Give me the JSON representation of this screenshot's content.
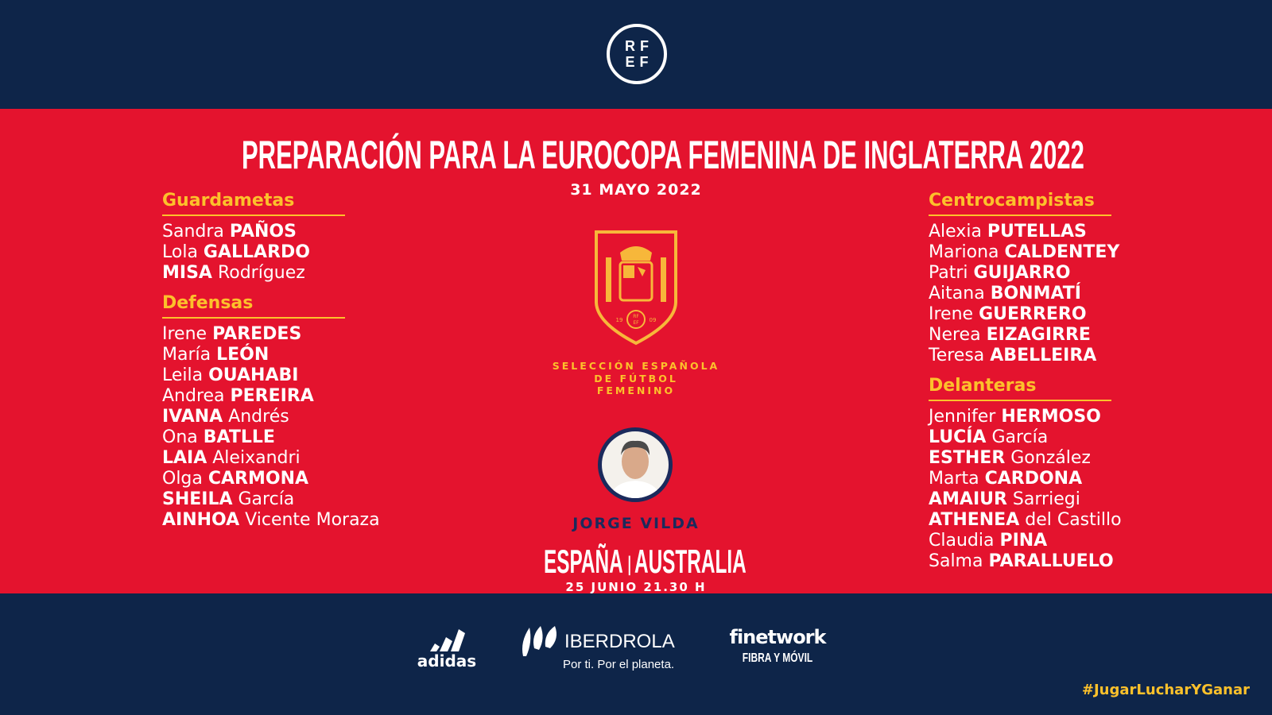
{
  "header": {
    "logo_text": [
      "RF",
      "EF"
    ]
  },
  "title": "PREPARACIÓN PARA LA EUROCOPA FEMENINA DE INGLATERRA 2022",
  "date": "31 MAYO 2022",
  "colors": {
    "navy": "#0e2549",
    "red": "#e4132e",
    "yellow": "#fcc12b"
  },
  "crest": {
    "years": [
      "19",
      "09"
    ],
    "logo_text": [
      "RF",
      "EF"
    ]
  },
  "team_name": [
    "SELECCIÓN ESPAÑOLA",
    "DE FÚTBOL",
    "FEMENINO"
  ],
  "coach": "JORGE VILDA",
  "match": {
    "home": "ESPAÑA",
    "away": "AUSTRALIA",
    "datetime": "25 JUNIO 21.30 H"
  },
  "left_groups": [
    {
      "title": "Guardametas",
      "players": [
        [
          [
            "Sandra ",
            0
          ],
          [
            "PAÑOS",
            1
          ]
        ],
        [
          [
            "Lola ",
            0
          ],
          [
            "GALLARDO",
            1
          ]
        ],
        [
          [
            "MISA",
            1
          ],
          [
            " Rodríguez",
            0
          ]
        ]
      ]
    },
    {
      "title": "Defensas",
      "players": [
        [
          [
            "Irene ",
            0
          ],
          [
            "PAREDES",
            1
          ]
        ],
        [
          [
            "María ",
            0
          ],
          [
            "LEÓN",
            1
          ]
        ],
        [
          [
            "Leila ",
            0
          ],
          [
            "OUAHABI",
            1
          ]
        ],
        [
          [
            "Andrea ",
            0
          ],
          [
            "PEREIRA",
            1
          ]
        ],
        [
          [
            "IVANA",
            1
          ],
          [
            " Andrés",
            0
          ]
        ],
        [
          [
            "Ona ",
            0
          ],
          [
            "BATLLE",
            1
          ]
        ],
        [
          [
            "LAIA",
            1
          ],
          [
            " Aleixandri",
            0
          ]
        ],
        [
          [
            "Olga ",
            0
          ],
          [
            "CARMONA",
            1
          ]
        ],
        [
          [
            "SHEILA",
            1
          ],
          [
            " García",
            0
          ]
        ],
        [
          [
            "AINHOA",
            1
          ],
          [
            " Vicente Moraza",
            0
          ]
        ]
      ]
    }
  ],
  "right_groups": [
    {
      "title": "Centrocampistas",
      "players": [
        [
          [
            "Alexia ",
            0
          ],
          [
            "PUTELLAS",
            1
          ]
        ],
        [
          [
            "Mariona ",
            0
          ],
          [
            "CALDENTEY",
            1
          ]
        ],
        [
          [
            "Patri ",
            0
          ],
          [
            "GUIJARRO",
            1
          ]
        ],
        [
          [
            "Aitana ",
            0
          ],
          [
            "BONMATÍ",
            1
          ]
        ],
        [
          [
            "Irene ",
            0
          ],
          [
            "GUERRERO",
            1
          ]
        ],
        [
          [
            "Nerea ",
            0
          ],
          [
            "EIZAGIRRE",
            1
          ]
        ],
        [
          [
            "Teresa ",
            0
          ],
          [
            "ABELLEIRA",
            1
          ]
        ]
      ]
    },
    {
      "title": "Delanteras",
      "players": [
        [
          [
            "Jennifer ",
            0
          ],
          [
            "HERMOSO",
            1
          ]
        ],
        [
          [
            "LUCÍA",
            1
          ],
          [
            " García",
            0
          ]
        ],
        [
          [
            "ESTHER",
            1
          ],
          [
            " González",
            0
          ]
        ],
        [
          [
            "Marta ",
            0
          ],
          [
            "CARDONA",
            1
          ]
        ],
        [
          [
            "AMAIUR",
            1
          ],
          [
            " Sarriegi",
            0
          ]
        ],
        [
          [
            "ATHENEA",
            1
          ],
          [
            " del Castillo",
            0
          ]
        ],
        [
          [
            "Claudia ",
            0
          ],
          [
            "PINA",
            1
          ]
        ],
        [
          [
            "Salma ",
            0
          ],
          [
            "PARALLUELO",
            1
          ]
        ]
      ]
    }
  ],
  "sponsors": {
    "adidas": "adidas",
    "iberdrola": "IBERDROLA",
    "iberdrola_tagline": "Por ti. Por el planeta.",
    "finetwork": "finetwork",
    "finetwork_tagline": "FIBRA Y MÓVIL"
  },
  "hashtag": "#JugarLucharYGanar"
}
